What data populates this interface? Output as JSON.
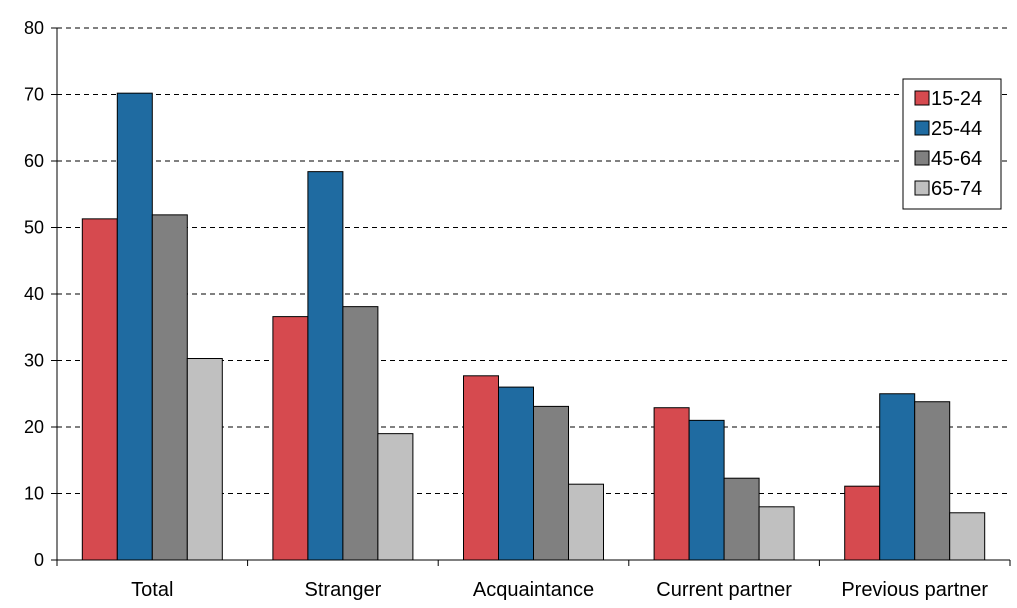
{
  "chart_data": {
    "type": "bar",
    "categories": [
      "Total",
      "Stranger",
      "Acquaintance",
      "Current partner",
      "Previous partner"
    ],
    "series": [
      {
        "name": "15-24",
        "color": "#d64a4f",
        "values": [
          51.3,
          36.6,
          27.7,
          22.9,
          11.1
        ]
      },
      {
        "name": "25-44",
        "color": "#1f6ba1",
        "values": [
          70.2,
          58.4,
          26.0,
          21.0,
          25.0
        ]
      },
      {
        "name": "45-64",
        "color": "#808080",
        "values": [
          51.9,
          38.1,
          23.1,
          12.3,
          23.8
        ]
      },
      {
        "name": "65-74",
        "color": "#c0c0c0",
        "values": [
          30.3,
          19.0,
          11.4,
          8.0,
          7.1
        ]
      }
    ],
    "ylim": [
      0,
      80
    ],
    "yticks": [
      0,
      10,
      20,
      30,
      40,
      50,
      60,
      70,
      80
    ],
    "grid": "horizontal dashed",
    "legend_position": "top-right",
    "title": "",
    "xlabel": "",
    "ylabel": ""
  }
}
